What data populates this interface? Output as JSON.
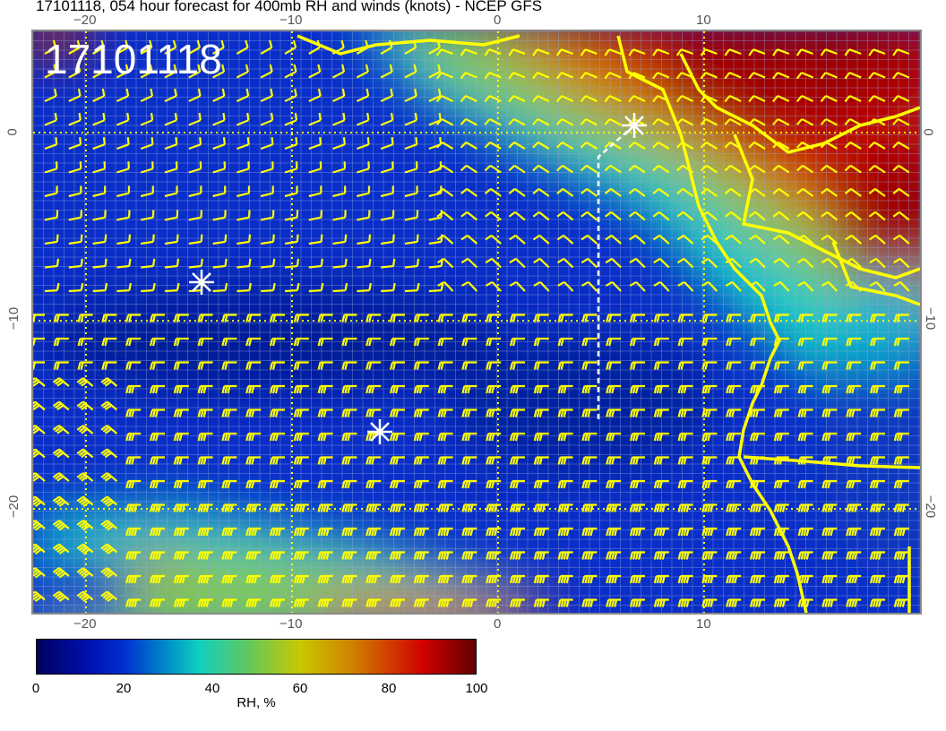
{
  "title": "17101118, 054 hour forecast for 400mb RH and winds (knots) - NCEP GFS",
  "stamp": "17101118",
  "map": {
    "lon_ticks": [
      "−20",
      "−10",
      "0",
      "10"
    ],
    "lat_ticks": [
      "0",
      "−10",
      "−20"
    ],
    "lon_range": [
      -22.5,
      20.5
    ],
    "lat_range": [
      -25.5,
      5.5
    ],
    "barb_color": "#ffff00",
    "coast_color": "#ffff00",
    "markers": [
      "asterisk",
      "asterisk",
      "asterisk"
    ]
  },
  "colorbar": {
    "labels": [
      "0",
      "20",
      "40",
      "60",
      "80",
      "100"
    ],
    "title": "RH, %",
    "range": [
      0,
      100
    ],
    "colormap": [
      "#000060",
      "#0030d0",
      "#10d0c0",
      "#c8c800",
      "#d00000",
      "#600000"
    ]
  }
}
